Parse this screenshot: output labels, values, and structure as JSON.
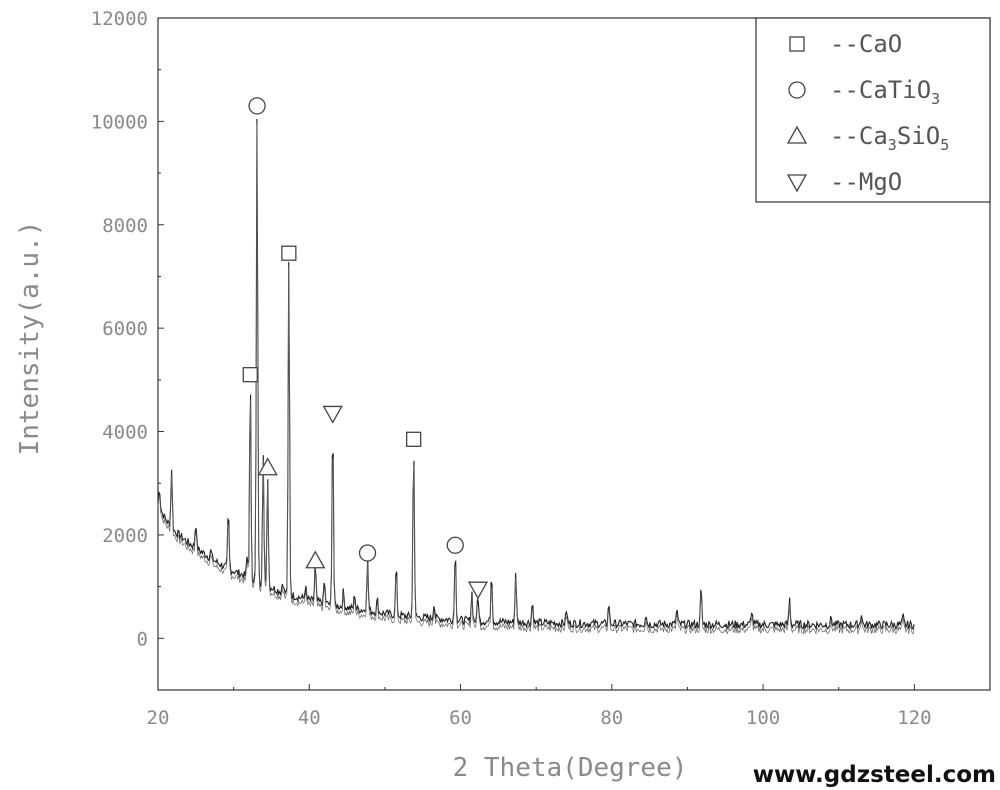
{
  "chart_data": {
    "type": "line",
    "xlabel": "2 Theta(Degree)",
    "ylabel": "Intensity(a.u.)",
    "xlim": [
      20,
      130
    ],
    "ylim": [
      -1000,
      12000
    ],
    "x_ticks": [
      20,
      40,
      60,
      80,
      100,
      120
    ],
    "y_ticks": [
      0,
      2000,
      4000,
      6000,
      8000,
      10000,
      12000
    ],
    "x_tick_labels": [
      "20",
      "40",
      "60",
      "80",
      "100",
      "120"
    ],
    "y_tick_labels": [
      "0",
      "2000",
      "4000",
      "6000",
      "8000",
      "10000",
      "12000"
    ],
    "grid": false,
    "legend_position": "top-right",
    "series": [
      {
        "background": [
          [
            20,
            2600
          ],
          [
            21,
            2300
          ],
          [
            22,
            2100
          ],
          [
            24,
            1850
          ],
          [
            26,
            1650
          ],
          [
            28,
            1450
          ],
          [
            30,
            1300
          ],
          [
            32,
            1180
          ],
          [
            34,
            1050
          ],
          [
            36,
            920
          ],
          [
            38,
            820
          ],
          [
            40,
            740
          ],
          [
            42,
            680
          ],
          [
            44,
            620
          ],
          [
            46,
            570
          ],
          [
            48,
            530
          ],
          [
            50,
            480
          ],
          [
            52,
            440
          ],
          [
            55,
            400
          ],
          [
            58,
            370
          ],
          [
            60,
            350
          ],
          [
            65,
            320
          ],
          [
            70,
            300
          ],
          [
            75,
            290
          ],
          [
            80,
            280
          ],
          [
            90,
            270
          ],
          [
            100,
            265
          ],
          [
            110,
            262
          ],
          [
            120,
            260
          ]
        ],
        "peaks": [
          [
            20.2,
            2900
          ],
          [
            21.8,
            3300
          ],
          [
            25,
            2250
          ],
          [
            27,
            1700
          ],
          [
            29.3,
            2450
          ],
          [
            31.8,
            1600
          ],
          [
            32.2,
            5000
          ],
          [
            33.1,
            10200
          ],
          [
            33.9,
            3600
          ],
          [
            34.5,
            3200
          ],
          [
            36.5,
            1100
          ],
          [
            37.3,
            7400
          ],
          [
            39.5,
            1000
          ],
          [
            40.8,
            1400
          ],
          [
            42,
            1100
          ],
          [
            43.1,
            4300
          ],
          [
            44.5,
            900
          ],
          [
            46,
            850
          ],
          [
            47.7,
            1550
          ],
          [
            49,
            750
          ],
          [
            51.5,
            1400
          ],
          [
            53.8,
            3800
          ],
          [
            56.5,
            700
          ],
          [
            59.3,
            1750
          ],
          [
            61.5,
            900
          ],
          [
            62.3,
            850
          ],
          [
            64.1,
            1300
          ],
          [
            67.3,
            1300
          ],
          [
            69.5,
            700
          ],
          [
            74,
            550
          ],
          [
            79.6,
            680
          ],
          [
            84.5,
            480
          ],
          [
            88.6,
            560
          ],
          [
            91.8,
            950
          ],
          [
            98.5,
            550
          ],
          [
            103.5,
            780
          ],
          [
            109,
            400
          ],
          [
            113,
            500
          ],
          [
            118.5,
            420
          ]
        ]
      }
    ],
    "markers": [
      {
        "shape": "square",
        "x": 32.2,
        "y": 5100
      },
      {
        "shape": "circle",
        "x": 33.1,
        "y": 10300
      },
      {
        "shape": "triangle-up",
        "x": 34.5,
        "y": 3300
      },
      {
        "shape": "square",
        "x": 37.3,
        "y": 7450
      },
      {
        "shape": "triangle-up",
        "x": 40.8,
        "y": 1500
      },
      {
        "shape": "triangle-down",
        "x": 43.1,
        "y": 4350
      },
      {
        "shape": "circle",
        "x": 47.7,
        "y": 1650
      },
      {
        "shape": "square",
        "x": 53.8,
        "y": 3850
      },
      {
        "shape": "circle",
        "x": 59.3,
        "y": 1800
      },
      {
        "shape": "triangle-down",
        "x": 62.3,
        "y": 950
      }
    ],
    "legend": [
      {
        "shape": "square",
        "dash": "--",
        "main": "CaO",
        "sub": ""
      },
      {
        "shape": "circle",
        "dash": "--",
        "main": "CaTiO",
        "sub": "3"
      },
      {
        "shape": "triangle-up",
        "dash": "--",
        "main": "Ca",
        "sub": "3",
        "main2": "SiO",
        "sub2": "5"
      },
      {
        "shape": "triangle-down",
        "dash": "--",
        "main": "MgO",
        "sub": ""
      }
    ]
  },
  "watermark": "www.gdzsteel.com"
}
